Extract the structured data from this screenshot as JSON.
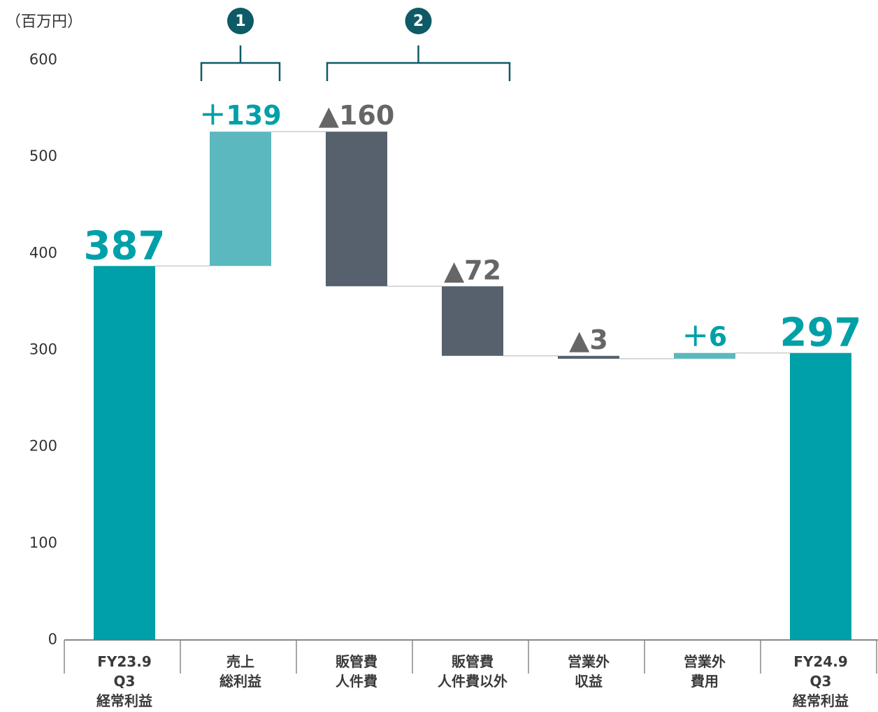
{
  "chart_data": {
    "type": "waterfall",
    "unit_label": "（百万円）",
    "categories": [
      "FY23.9\nQ3\n経常利益",
      "売上\n総利益",
      "販管費\n人件費",
      "販管費\n人件費以外",
      "営業外\n収益",
      "営業外\n費用",
      "FY24.9\nQ3\n経常利益"
    ],
    "values": [
      387,
      139,
      -160,
      -72,
      -3,
      6,
      297
    ],
    "value_labels": [
      "387",
      "＋139",
      "▲160",
      "▲72",
      "▲3",
      "＋6",
      "297"
    ],
    "is_total": [
      true,
      false,
      false,
      false,
      false,
      false,
      true
    ],
    "colors": {
      "total": "#00a0a8",
      "increase": "#5bb8be",
      "decrease": "#56616d"
    },
    "ylim": [
      0,
      600
    ],
    "yticks": [
      0,
      100,
      200,
      300,
      400,
      500,
      600
    ],
    "annotations": [
      "1",
      "2"
    ]
  }
}
